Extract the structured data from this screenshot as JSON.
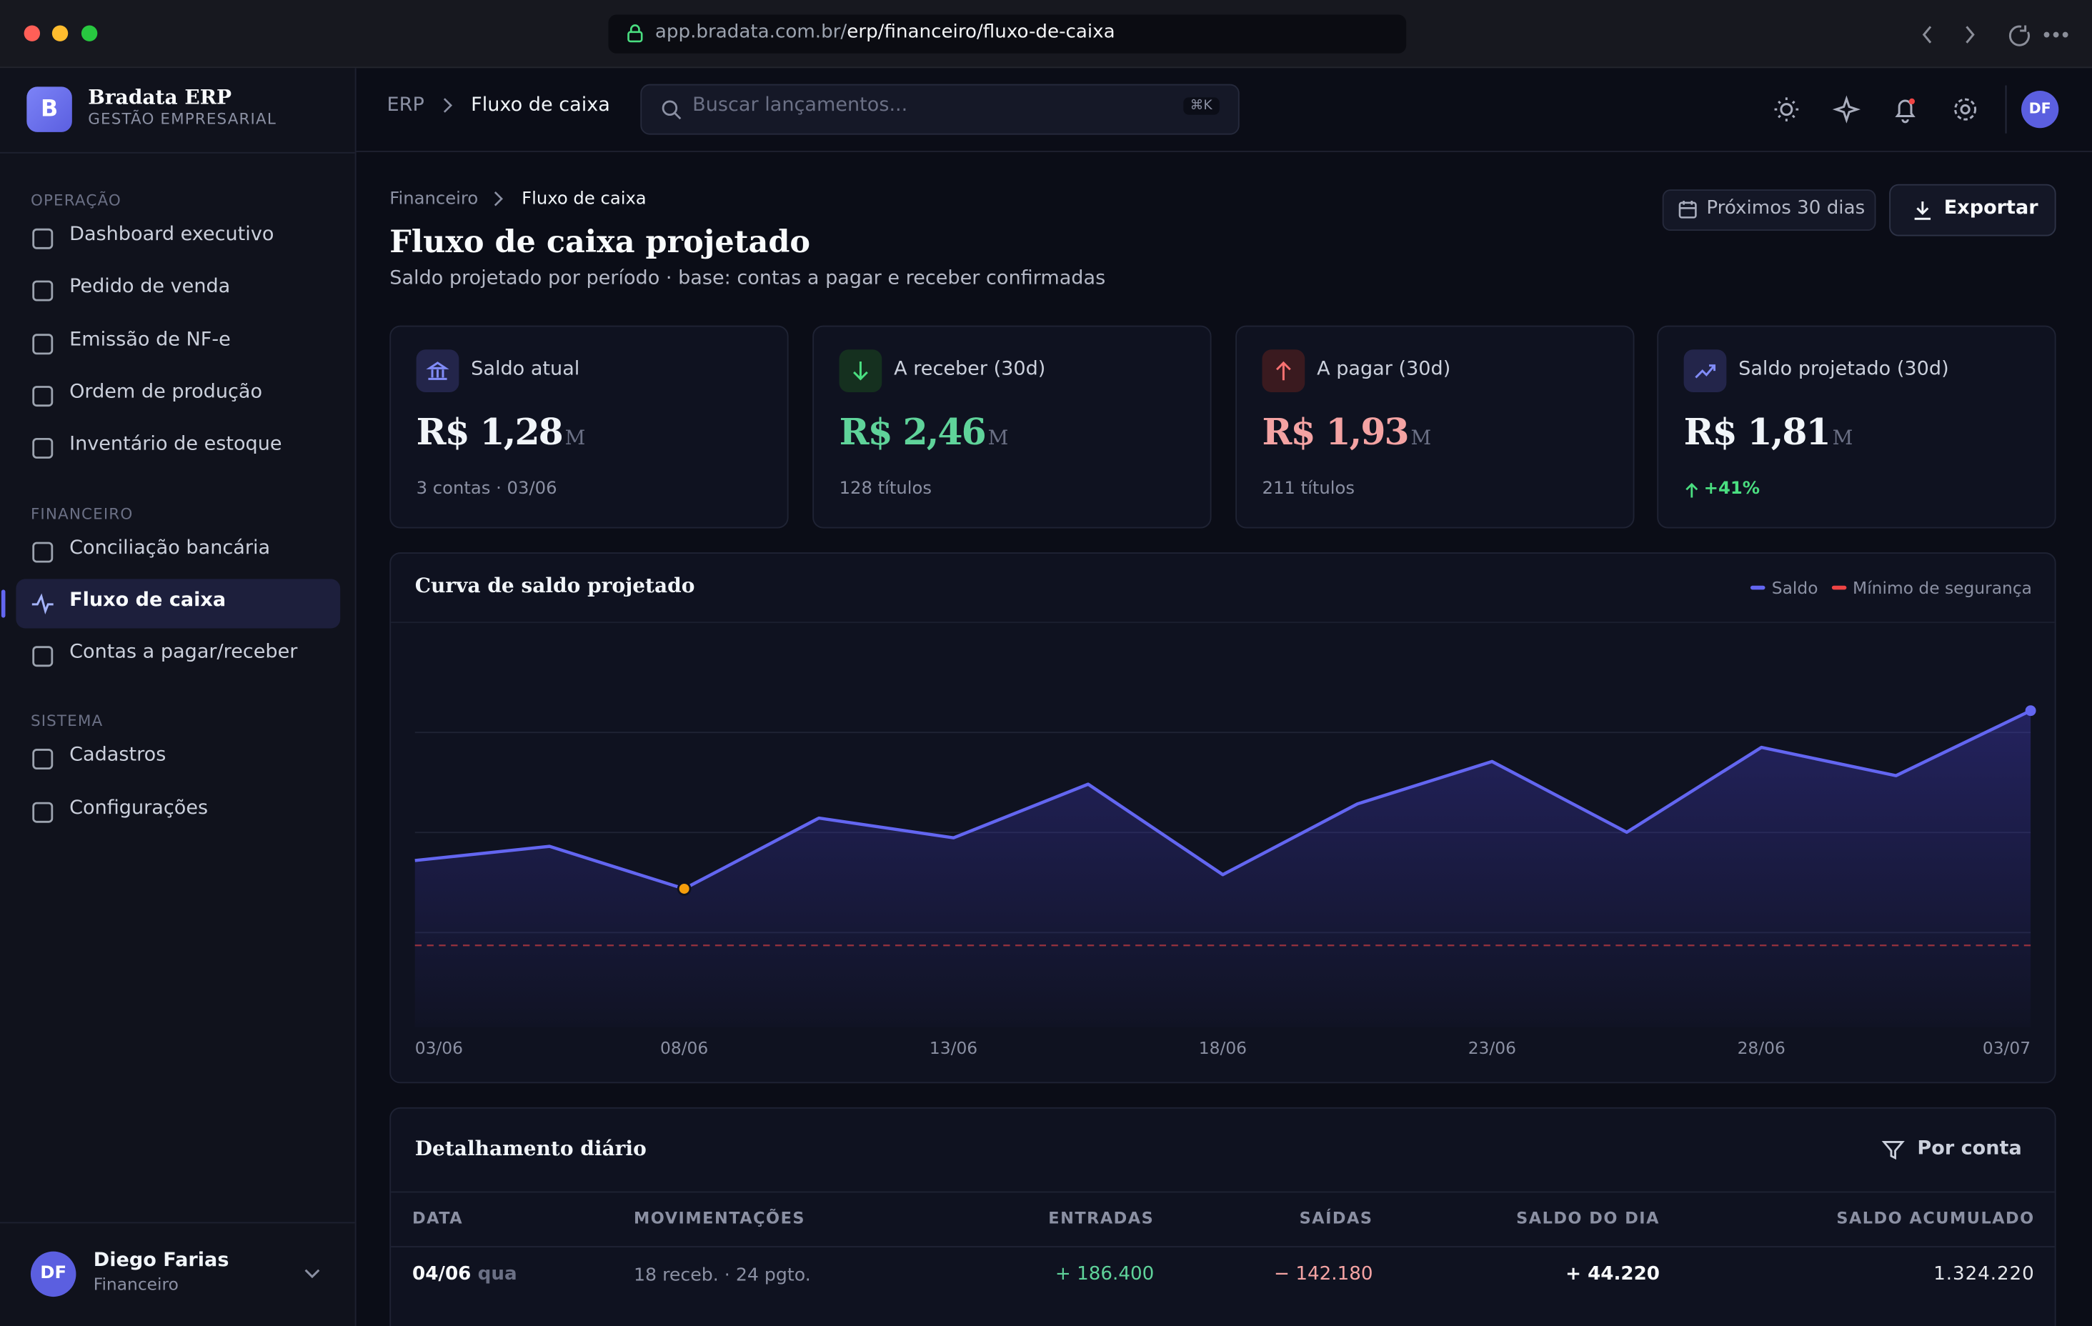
{
  "browser": {
    "url_host": "app.bradata.com.br/",
    "url_path": "erp/financeiro/fluxo-de-caixa"
  },
  "sidebar": {
    "brand": {
      "initial": "B",
      "name": "Bradata ERP",
      "tagline": "GESTÃO EMPRESARIAL"
    },
    "sections": [
      {
        "title": "OPERAÇÃO",
        "items": [
          "Dashboard executivo",
          "Pedido de venda",
          "Emissão de NF-e",
          "Ordem de produção",
          "Inventário de estoque"
        ]
      },
      {
        "title": "FINANCEIRO",
        "items": [
          "Conciliação bancária",
          "Fluxo de caixa",
          "Contas a pagar/receber"
        ]
      },
      {
        "title": "SISTEMA",
        "items": [
          "Cadastros",
          "Configurações"
        ]
      }
    ],
    "active_item": [
      1,
      1
    ],
    "user": {
      "initials": "DF",
      "name": "Diego Farias",
      "role": "Financeiro"
    }
  },
  "topbar": {
    "breadcrumb": [
      "ERP",
      "Fluxo de caixa"
    ],
    "search_placeholder": "Buscar lançamentos...",
    "shortcut": "⌘K",
    "avatar": "DF"
  },
  "page": {
    "breadcrumb": [
      "Financeiro",
      "Fluxo de caixa"
    ],
    "title": "Fluxo de caixa projetado",
    "subtitle": "Saldo projetado por período · base: contas a pagar e receber confirmadas",
    "period_button": "Próximos 30 dias",
    "export_button": "Exportar"
  },
  "kpis": [
    {
      "label": "Saldo atual",
      "value": "R$ 1,28",
      "unit": "M",
      "note": "3 contas · 03/06",
      "value_color": "#f1f5f9",
      "note_color": "#8b90a3",
      "icon_color": "#818cf8",
      "icon_bg": "#23254a"
    },
    {
      "label": "A receber (30d)",
      "value": "R$ 2,46",
      "unit": "M",
      "note": "128 títulos",
      "value_color": "#5fd39a",
      "note_color": "#8b90a3",
      "icon_color": "#4ade80",
      "icon_bg": "#15301f"
    },
    {
      "label": "A pagar (30d)",
      "value": "R$ 1,93",
      "unit": "M",
      "note": "211 títulos",
      "value_color": "#f4a3a3",
      "note_color": "#8b90a3",
      "icon_color": "#f87171",
      "icon_bg": "#3a1a1f"
    },
    {
      "label": "Saldo projetado (30d)",
      "value": "R$ 1,81",
      "unit": "M",
      "note": "+41%",
      "value_color": "#f1f5f9",
      "note_color": "#4ade80",
      "icon_color": "#818cf8",
      "icon_bg": "#23254a"
    }
  ],
  "chart_data": {
    "type": "line",
    "title": "Curva de saldo projetado",
    "x": [
      0,
      2.5,
      5,
      7.5,
      10,
      12.5,
      15,
      17.5,
      20,
      22.5,
      25,
      27.5,
      30
    ],
    "xlim": [
      0,
      30
    ],
    "xticks": [
      {
        "value": 0,
        "label": "03/06"
      },
      {
        "value": 5,
        "label": "08/06"
      },
      {
        "value": 10,
        "label": "13/06"
      },
      {
        "value": 15,
        "label": "18/06"
      },
      {
        "value": 20,
        "label": "23/06"
      },
      {
        "value": 25,
        "label": "28/06"
      },
      {
        "value": 30,
        "label": "03/07"
      }
    ],
    "ylim": [
      0.69,
      2.12
    ],
    "series": [
      {
        "name": "Saldo",
        "color": "#6366f1",
        "style": "solid",
        "values": [
          1.28,
          1.33,
          1.18,
          1.43,
          1.36,
          1.55,
          1.23,
          1.48,
          1.63,
          1.38,
          1.68,
          1.58,
          1.81
        ]
      },
      {
        "name": "Mínimo de segurança",
        "color": "#ef4444",
        "style": "dashed",
        "values": [
          0.98,
          0.98,
          0.98,
          0.98,
          0.98,
          0.98,
          0.98,
          0.98,
          0.98,
          0.98,
          0.98,
          0.98,
          0.98
        ]
      }
    ]
  },
  "table": {
    "title": "Detalhamento diário",
    "filter_button": "Por conta",
    "columns": [
      "DATA",
      "MOVIMENTAÇÕES",
      "ENTRADAS",
      "SAÍDAS",
      "SALDO DO DIA",
      "SALDO ACUMULADO"
    ],
    "rows": [
      {
        "date": "04/06",
        "weekday": "qua",
        "movements": "18 receb. · 24 pgto.",
        "inflow": "+ 186.400",
        "outflow": "− 142.180",
        "day_balance": "+ 44.220",
        "cumulative": "1.324.220"
      }
    ]
  }
}
